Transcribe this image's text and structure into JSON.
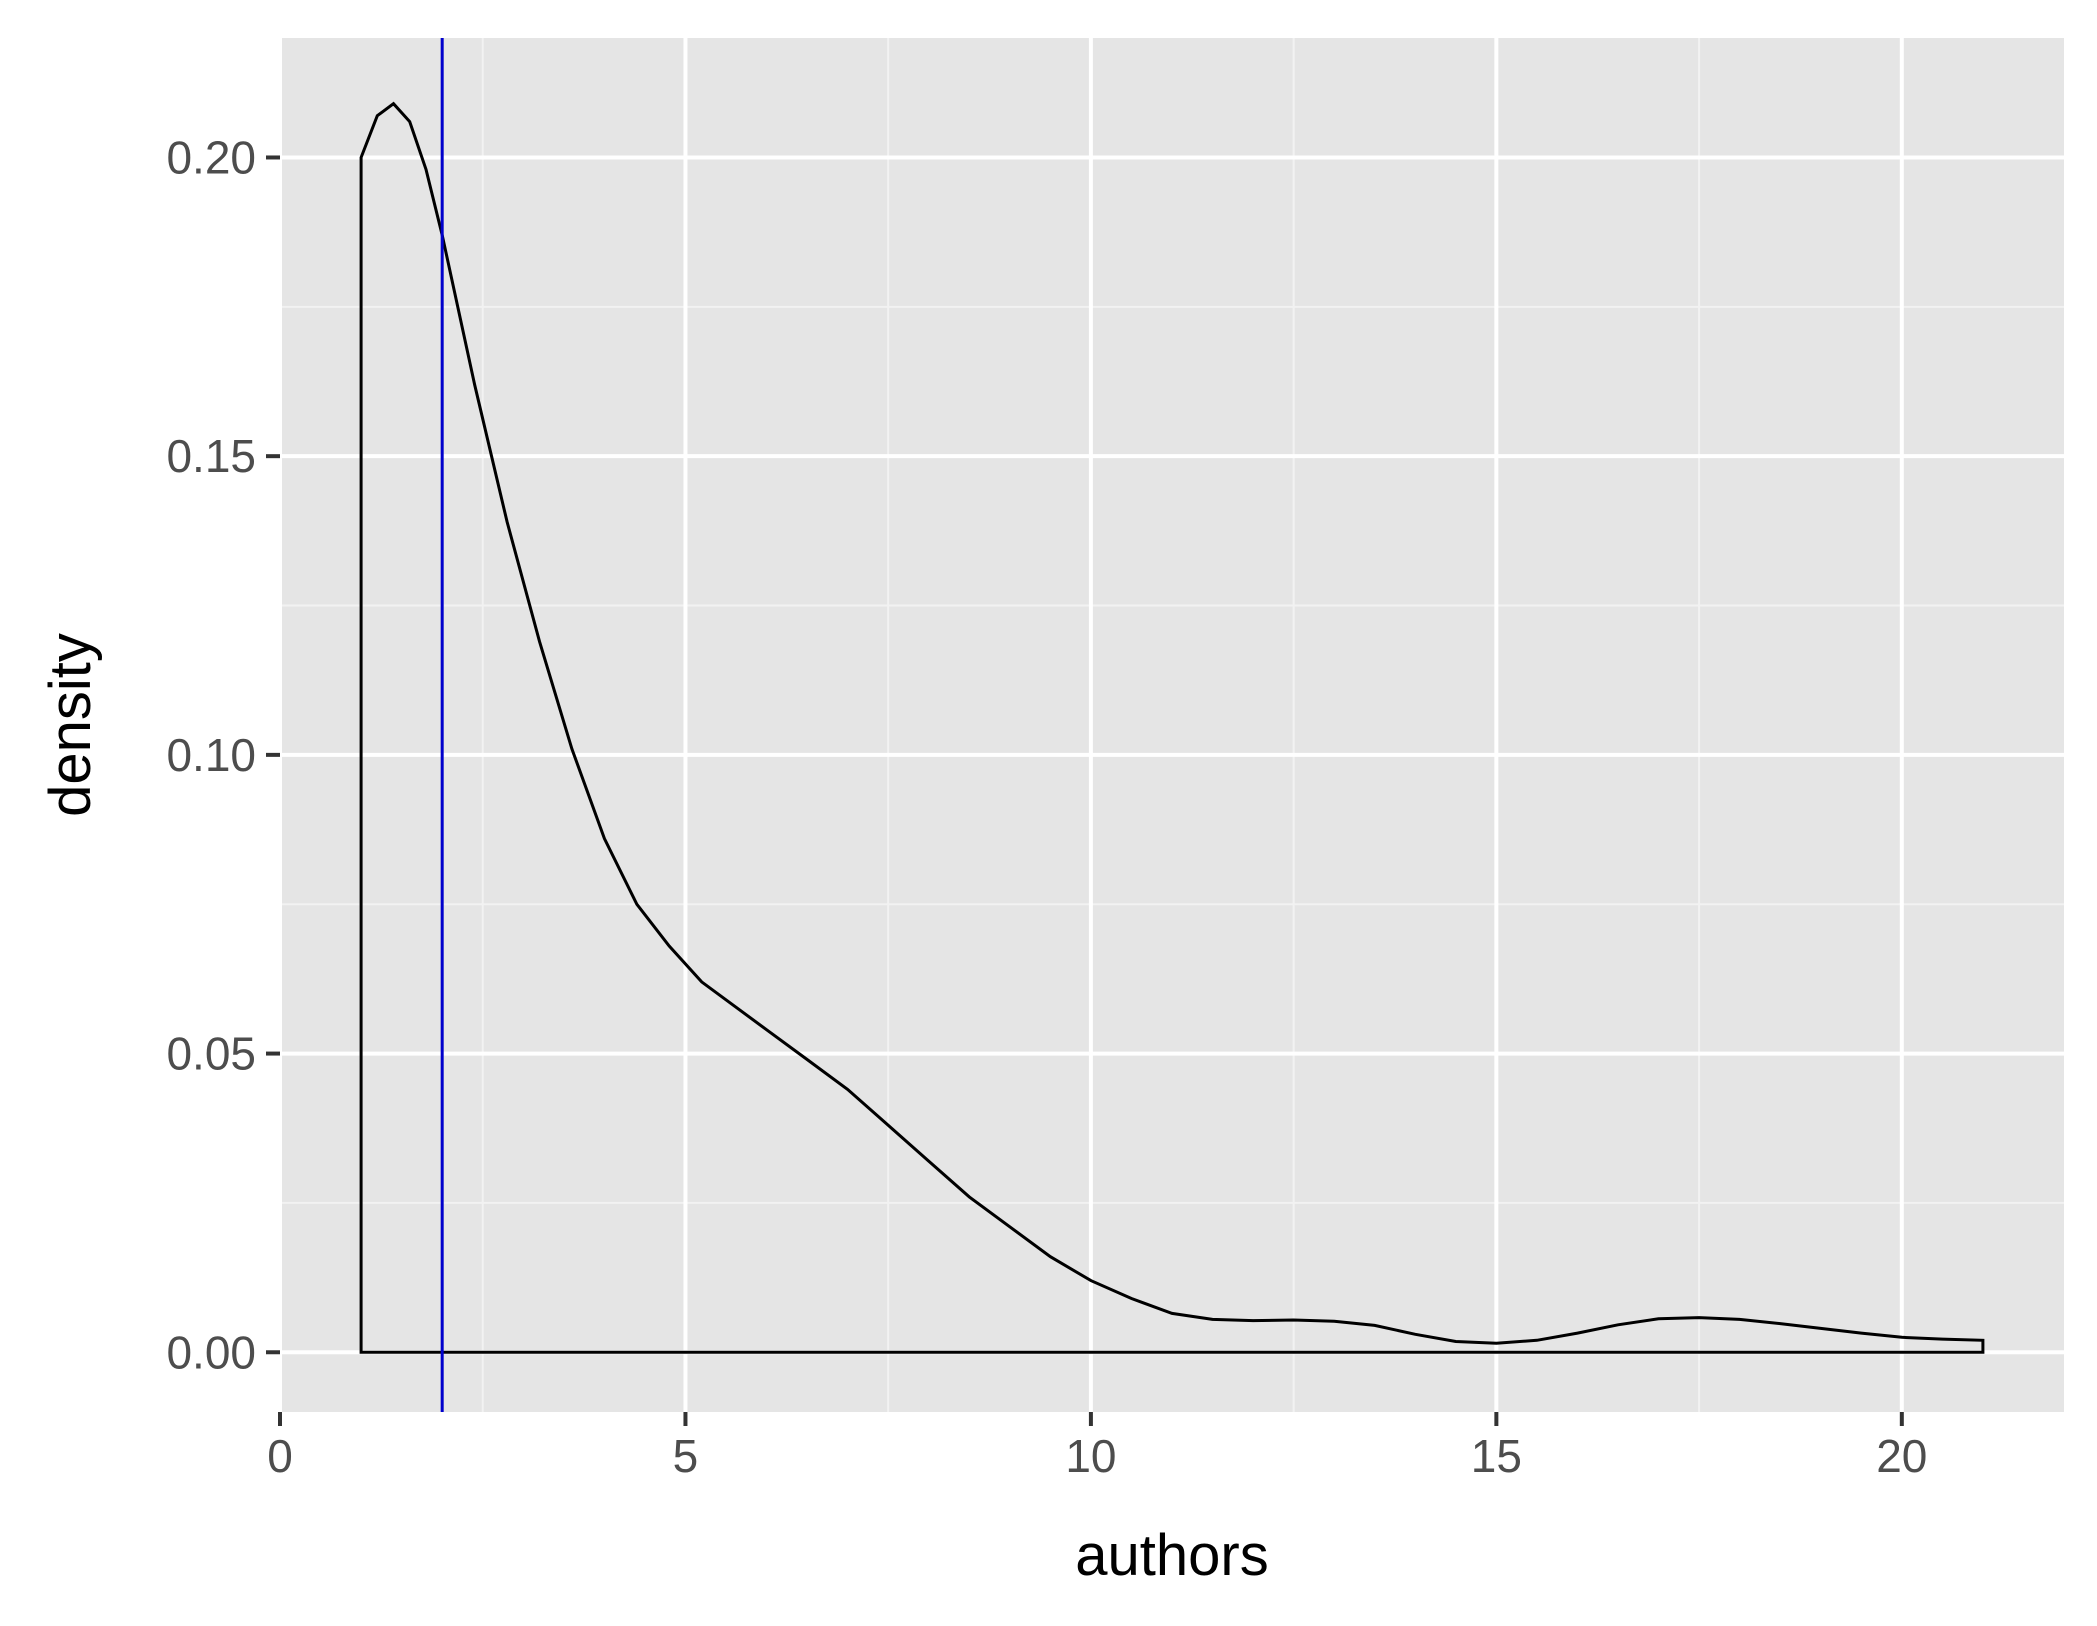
{
  "chart_data": {
    "type": "area",
    "title": "",
    "xlabel": "authors",
    "ylabel": "density",
    "xlim": [
      0,
      22
    ],
    "ylim": [
      -0.01,
      0.22
    ],
    "x_ticks": [
      0,
      5,
      10,
      15,
      20
    ],
    "x_tick_labels": [
      "0",
      "5",
      "10",
      "15",
      "20"
    ],
    "y_ticks": [
      0,
      0.05,
      0.1,
      0.15,
      0.2
    ],
    "y_tick_labels": [
      "0.00",
      "0.05",
      "0.10",
      "0.15",
      "0.20"
    ],
    "grid": true,
    "series": [
      {
        "x": [
          1.0,
          1.2,
          1.4,
          1.6,
          1.8,
          2.0,
          2.4,
          2.8,
          3.2,
          3.6,
          4.0,
          4.4,
          4.8,
          5.2,
          5.6,
          6.0,
          6.5,
          7.0,
          7.5,
          8.0,
          8.5,
          9.0,
          9.5,
          10.0,
          10.5,
          11.0,
          11.5,
          12.0,
          12.5,
          13.0,
          13.5,
          14.0,
          14.5,
          15.0,
          15.5,
          16.0,
          16.5,
          17.0,
          17.5,
          18.0,
          18.5,
          19.0,
          19.5,
          20.0,
          20.5,
          21.0
        ],
        "y": [
          0.2,
          0.207,
          0.209,
          0.206,
          0.198,
          0.187,
          0.162,
          0.139,
          0.119,
          0.101,
          0.086,
          0.075,
          0.068,
          0.062,
          0.058,
          0.054,
          0.049,
          0.044,
          0.038,
          0.032,
          0.026,
          0.021,
          0.016,
          0.012,
          0.009,
          0.0065,
          0.0055,
          0.0053,
          0.0054,
          0.0052,
          0.0045,
          0.003,
          0.0018,
          0.0015,
          0.002,
          0.0032,
          0.0046,
          0.0056,
          0.0058,
          0.0055,
          0.0048,
          0.004,
          0.0032,
          0.0025,
          0.0022,
          0.002
        ]
      }
    ],
    "vline": {
      "x": 2.0,
      "color": "#0000cc"
    },
    "colors": {
      "panel_background": "#e5e5e5",
      "grid_major": "#ffffff",
      "grid_minor": "#f2f2f2",
      "curve": "#000000"
    }
  }
}
